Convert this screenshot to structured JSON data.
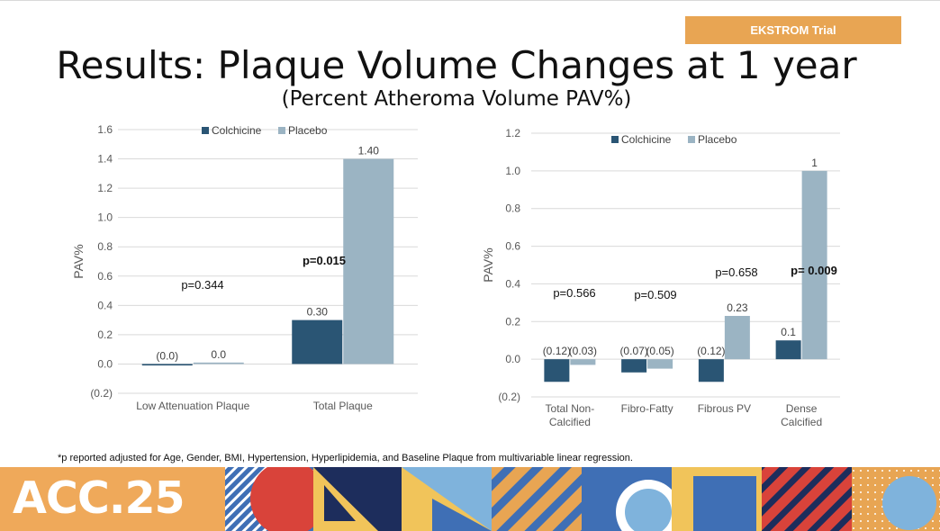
{
  "header": {
    "trial_tag": "EKSTROM Trial",
    "title": "Results: Plaque Volume Changes at 1 year",
    "subtitle": "(Percent Atheroma Volume PAV%)"
  },
  "footnote": "*p reported adjusted for Age, Gender, BMI, Hypertension, Hyperlipidemia, and Baseline Plaque from multivariable linear regression.",
  "banner": {
    "logo_text": "ACC.25"
  },
  "colors": {
    "colchicine": "#2a5574",
    "placebo": "#9bb4c3",
    "grid": "#d9d9d9",
    "tag": "#e8a553"
  },
  "chart_data": [
    {
      "type": "bar",
      "ylabel": "PAV%",
      "ylim": [
        -0.2,
        1.6
      ],
      "yticks": [
        -0.2,
        0.0,
        0.2,
        0.4,
        0.6,
        0.8,
        1.0,
        1.2,
        1.4,
        1.6
      ],
      "ytick_labels": [
        "(0.2)",
        "0.0",
        "0.2",
        "0.4",
        "0.6",
        "0.8",
        "1.0",
        "1.2",
        "1.4",
        "1.6"
      ],
      "legend": "top",
      "grid": true,
      "categories": [
        [
          "Low Attenuation Plaque"
        ],
        [
          "Total Plaque"
        ]
      ],
      "series": [
        {
          "name": "Colchicine",
          "color": "#2a5574",
          "values": [
            -0.01,
            0.3
          ],
          "labels": [
            "(0.0)",
            "0.30"
          ]
        },
        {
          "name": "Placebo",
          "color": "#9bb4c3",
          "values": [
            0.01,
            1.4
          ],
          "labels": [
            "0.0",
            "1.40"
          ]
        }
      ],
      "pvalues": [
        {
          "text": "p=0.344",
          "bold": false
        },
        {
          "text": "p=0.015",
          "bold": true
        }
      ]
    },
    {
      "type": "bar",
      "ylabel": "PAV%",
      "ylim": [
        -0.2,
        1.2
      ],
      "yticks": [
        -0.2,
        0.0,
        0.2,
        0.4,
        0.6,
        0.8,
        1.0,
        1.2
      ],
      "ytick_labels": [
        "(0.2)",
        "0.0",
        "0.2",
        "0.4",
        "0.6",
        "0.8",
        "1.0",
        "1.2"
      ],
      "legend": "top",
      "grid": true,
      "categories": [
        [
          "Total Non-",
          "Calcified"
        ],
        [
          "Fibro-Fatty"
        ],
        [
          "Fibrous PV"
        ],
        [
          "Dense",
          "Calcified"
        ]
      ],
      "series": [
        {
          "name": "Colchicine",
          "color": "#2a5574",
          "values": [
            -0.12,
            -0.07,
            -0.12,
            0.1
          ],
          "labels": [
            "(0.12)",
            "(0.07)",
            "(0.12)",
            "0.1"
          ]
        },
        {
          "name": "Placebo",
          "color": "#9bb4c3",
          "values": [
            -0.03,
            -0.05,
            0.23,
            1.0
          ],
          "labels": [
            "(0.03)",
            "(0.05)",
            "0.23",
            "1"
          ]
        }
      ],
      "pvalues": [
        {
          "text": "p=0.566",
          "bold": false
        },
        {
          "text": "p=0.509",
          "bold": false
        },
        {
          "text": "p=0.658",
          "bold": false
        },
        {
          "text": "p= 0.009",
          "bold": true
        }
      ]
    }
  ]
}
